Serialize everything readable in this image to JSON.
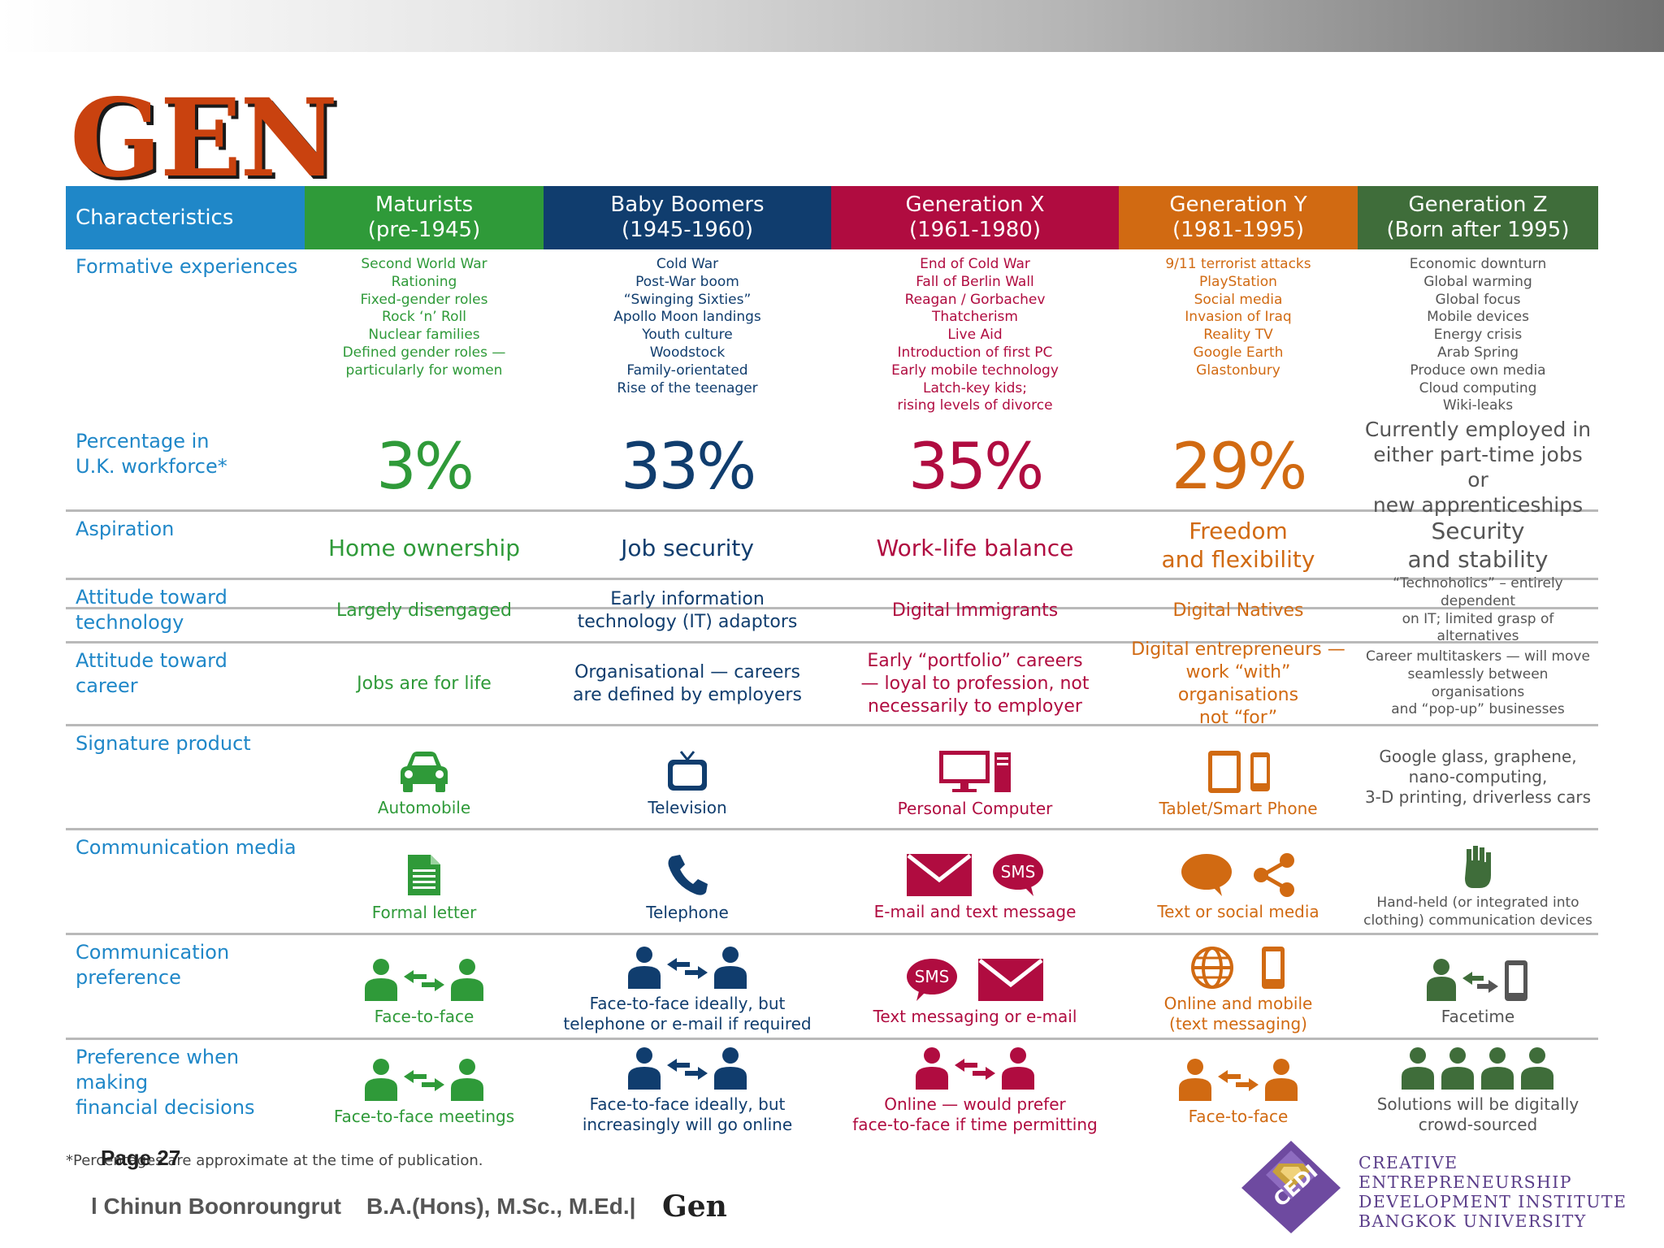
{
  "slide": {
    "title": "GEN",
    "footnote": "*Percentages are approximate at the time of publication.",
    "page_label": "Page 27",
    "author": "l Chinun Boonroungrut    B.A.(Hons), M.Sc., M.Ed.| ",
    "author_suffix": "Gen",
    "institute": {
      "logo_text": "CEDI",
      "line1": "CREATIVE ENTREPRENEURSHIP",
      "line2": "DEVELOPMENT INSTITUTE",
      "line3": "BANGKOK UNIVERSITY"
    }
  },
  "colors": {
    "characteristics": "#1f87c8",
    "maturists": "#2f9a39",
    "baby_boomers": "#103d6e",
    "generation_x": "#b00c40",
    "generation_y": "#d16a12",
    "generation_z": "#3f6d3a",
    "text_z": "#555555",
    "rule": "#b9b9b9"
  },
  "table": {
    "header": {
      "characteristics": "Characteristics",
      "gens": [
        {
          "name": "Maturists",
          "years": "(pre-1945)"
        },
        {
          "name": "Baby Boomers",
          "years": "(1945-1960)"
        },
        {
          "name": "Generation X",
          "years": "(1961-1980)"
        },
        {
          "name": "Generation Y",
          "years": "(1981-1995)"
        },
        {
          "name": "Generation Z",
          "years": "(Born after 1995)"
        }
      ]
    },
    "formative": {
      "label": "Formative experiences",
      "maturists": [
        "Second World War",
        "Rationing",
        "Fixed-gender roles",
        "Rock ‘n’ Roll",
        "Nuclear families",
        "Defined gender roles —",
        "particularly for women"
      ],
      "baby_boomers": [
        "Cold War",
        "Post-War boom",
        "“Swinging Sixties”",
        "Apollo Moon landings",
        "Youth culture",
        "Woodstock",
        "Family-orientated",
        "Rise of the teenager"
      ],
      "generation_x": [
        "End of Cold War",
        "Fall of Berlin Wall",
        "Reagan / Gorbachev",
        "Thatcherism",
        "Live Aid",
        "Introduction of first PC",
        "Early mobile technology",
        "Latch-key kids;",
        "rising levels of divorce"
      ],
      "generation_y": [
        "9/11 terrorist attacks",
        "PlayStation",
        "Social media",
        "Invasion of Iraq",
        "Reality TV",
        "Google Earth",
        "Glastonbury"
      ],
      "generation_z": [
        "Economic downturn",
        "Global warming",
        "Global focus",
        "Mobile devices",
        "Energy crisis",
        "Arab Spring",
        "Produce own media",
        "Cloud computing",
        "Wiki-leaks"
      ]
    },
    "percentage": {
      "label_line1": "Percentage in",
      "label_line2": "U.K. workforce*",
      "maturists": "3%",
      "baby_boomers": "33%",
      "generation_x": "35%",
      "generation_y": "29%",
      "generation_z": [
        "Currently employed in",
        "either part-time jobs or",
        "new apprenticeships"
      ]
    },
    "aspiration": {
      "label": "Aspiration",
      "maturists": "Home ownership",
      "baby_boomers": "Job security",
      "generation_x": "Work-life balance",
      "generation_y": [
        "Freedom",
        "and flexibility"
      ],
      "generation_z": [
        "Security",
        "and stability"
      ]
    },
    "technology": {
      "label_line1": "Attitude toward",
      "label_line2": "technology",
      "maturists": "Largely disengaged",
      "baby_boomers": [
        "Early information",
        "technology (IT) adaptors"
      ],
      "generation_x": "Digital Immigrants",
      "generation_y": "Digital Natives",
      "generation_z": [
        "“Technoholics” – entirely dependent",
        "on IT; limited grasp of alternatives"
      ]
    },
    "career": {
      "label_line1": "Attitude toward",
      "label_line2": "career",
      "maturists": "Jobs are for life",
      "baby_boomers": [
        "Organisational — careers",
        "are defined by employers"
      ],
      "generation_x": [
        "Early “portfolio” careers",
        "— loyal to profession, not",
        "necessarily to employer"
      ],
      "generation_y": [
        "Digital entrepreneurs —",
        "work “with” organisations",
        "not “for”"
      ],
      "generation_z": [
        "Career multitaskers — will move",
        "seamlessly between organisations",
        "and “pop-up” businesses"
      ]
    },
    "product": {
      "label": "Signature product",
      "maturists": {
        "caption": "Automobile",
        "icon": "car-icon"
      },
      "baby_boomers": {
        "caption": "Television",
        "icon": "television-icon"
      },
      "generation_x": {
        "caption": "Personal Computer",
        "icon": "personal-computer-icon"
      },
      "generation_y": {
        "caption": "Tablet/Smart Phone",
        "icon": "tablet-phone-icon"
      },
      "generation_z": [
        "Google glass, graphene,",
        "nano-computing,",
        "3-D printing, driverless cars"
      ]
    },
    "media": {
      "label": "Communication media",
      "maturists": {
        "caption": "Formal letter",
        "icon": "letter-icon"
      },
      "baby_boomers": {
        "caption": "Telephone",
        "icon": "telephone-icon"
      },
      "generation_x": {
        "caption": "E-mail and text message",
        "icon": "envelope-sms-icon",
        "sms": "SMS"
      },
      "generation_y": {
        "caption": "Text or social media",
        "icon": "chat-share-icon"
      },
      "generation_z": {
        "caption": [
          "Hand-held (or integrated into",
          "clothing) communication devices"
        ],
        "icon": "hand-icon"
      }
    },
    "preference": {
      "label_line1": "Communication",
      "label_line2": "preference",
      "maturists": {
        "caption": "Face-to-face",
        "icon": "people-exchange-icon"
      },
      "baby_boomers": {
        "caption": [
          "Face-to-face ideally, but",
          "telephone or e-mail if required"
        ],
        "icon": "people-exchange-icon"
      },
      "generation_x": {
        "caption": "Text messaging or e-mail",
        "icon": "sms-envelope-icon",
        "sms": "SMS"
      },
      "generation_y": {
        "caption": [
          "Online and mobile",
          "(text messaging)"
        ],
        "icon": "globe-phone-icon"
      },
      "generation_z": {
        "caption": "Facetime",
        "icon": "person-device-icon"
      }
    },
    "financial": {
      "label_line1": "Preference when making",
      "label_line2": "financial decisions",
      "maturists": {
        "caption": "Face-to-face meetings",
        "icon": "people-exchange-icon"
      },
      "baby_boomers": {
        "caption": [
          "Face-to-face ideally, but",
          "increasingly will go online"
        ],
        "icon": "people-exchange-icon"
      },
      "generation_x": {
        "caption": [
          "Online — would prefer",
          "face-to-face if time permitting"
        ],
        "icon": "people-exchange-icon"
      },
      "generation_y": {
        "caption": "Face-to-face",
        "icon": "people-exchange-icon"
      },
      "generation_z": {
        "caption": [
          "Solutions will be digitally",
          "crowd-sourced"
        ],
        "icon": "crowd-icon"
      }
    }
  }
}
